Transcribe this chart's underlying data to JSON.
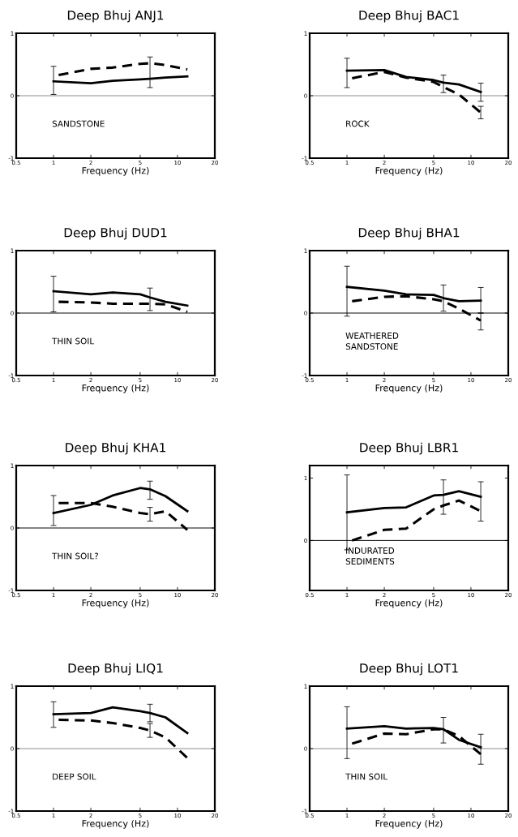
{
  "chart_data": [
    {
      "type": "line",
      "title": "Deep Bhuj ANJ1",
      "xlabel": "Frequency (Hz)",
      "log": "x",
      "xlim": [
        0.5,
        20
      ],
      "xticks": [
        0.5,
        1,
        2,
        5,
        10,
        20
      ],
      "ylim": [
        -1,
        1
      ],
      "yticks": [
        -1,
        0,
        1
      ],
      "grid": false,
      "legend": false,
      "annotations": [
        "SANDSTONE"
      ],
      "ref_lines": [
        {
          "axis": "y",
          "value": 0,
          "color": "#888888"
        }
      ],
      "series": [
        {
          "color": "#000000",
          "line_style": "solid",
          "x": [
            1,
            2,
            3,
            5,
            6,
            8,
            12
          ],
          "values": [
            0.23,
            0.2,
            0.24,
            0.26,
            0.27,
            0.29,
            0.31
          ],
          "errors": [
            [
              0.02,
              0.47
            ],
            null,
            null,
            null,
            [
              0.13,
              0.62
            ],
            null,
            null
          ]
        },
        {
          "color": "#000000",
          "line_style": "dashed",
          "x": [
            1.1,
            2,
            3,
            5,
            6,
            8,
            12
          ],
          "values": [
            0.33,
            0.43,
            0.45,
            0.51,
            0.52,
            0.49,
            0.42
          ]
        }
      ]
    },
    {
      "type": "line",
      "title": "Deep Bhuj BAC1",
      "xlabel": "Frequency (Hz)",
      "log": "x",
      "xlim": [
        0.5,
        20
      ],
      "xticks": [
        0.5,
        1,
        2,
        5,
        10,
        20
      ],
      "ylim": [
        -1,
        1
      ],
      "yticks": [
        -1,
        0,
        1
      ],
      "grid": false,
      "legend": false,
      "annotations": [
        "ROCK"
      ],
      "ref_lines": [
        {
          "axis": "y",
          "value": 0,
          "color": "#888888"
        }
      ],
      "series": [
        {
          "color": "#000000",
          "line_style": "solid",
          "x": [
            1,
            2,
            3,
            5,
            6,
            8,
            12
          ],
          "values": [
            0.4,
            0.41,
            0.3,
            0.25,
            0.21,
            0.18,
            0.06
          ],
          "errors": [
            [
              0.13,
              0.6
            ],
            null,
            null,
            null,
            [
              0.05,
              0.33
            ],
            null,
            [
              -0.09,
              0.2
            ]
          ]
        },
        {
          "color": "#000000",
          "line_style": "dashed",
          "x": [
            1.1,
            2,
            3,
            5,
            6,
            8,
            12
          ],
          "values": [
            0.28,
            0.38,
            0.29,
            0.22,
            0.14,
            0.02,
            -0.27
          ],
          "errors": [
            null,
            null,
            null,
            null,
            null,
            null,
            [
              -0.37,
              -0.17
            ]
          ]
        }
      ]
    },
    {
      "type": "line",
      "title": "Deep Bhuj DUD1",
      "xlabel": "Frequency (Hz)",
      "log": "x",
      "xlim": [
        0.5,
        20
      ],
      "xticks": [
        0.5,
        1,
        2,
        5,
        10,
        20
      ],
      "ylim": [
        -1,
        1
      ],
      "yticks": [
        -1,
        0,
        1
      ],
      "grid": false,
      "legend": false,
      "annotations": [
        "THIN SOIL"
      ],
      "ref_lines": [
        {
          "axis": "y",
          "value": 0,
          "color": "#000000"
        }
      ],
      "series": [
        {
          "color": "#000000",
          "line_style": "solid",
          "x": [
            1,
            2,
            3,
            5,
            6,
            8,
            12
          ],
          "values": [
            0.35,
            0.3,
            0.33,
            0.3,
            0.25,
            0.18,
            0.12
          ],
          "errors": [
            [
              0.02,
              0.59
            ],
            null,
            null,
            null,
            [
              0.04,
              0.4
            ],
            null,
            null
          ]
        },
        {
          "color": "#000000",
          "line_style": "dashed",
          "x": [
            1.1,
            2,
            3,
            5,
            6,
            8,
            12
          ],
          "values": [
            0.18,
            0.17,
            0.15,
            0.15,
            0.15,
            0.14,
            0.02
          ]
        }
      ]
    },
    {
      "type": "line",
      "title": "Deep Bhuj BHA1",
      "xlabel": "Frequency (Hz)",
      "log": "x",
      "xlim": [
        0.5,
        20
      ],
      "xticks": [
        0.5,
        1,
        2,
        5,
        10,
        20
      ],
      "ylim": [
        -1,
        1
      ],
      "yticks": [
        -1,
        0,
        1
      ],
      "grid": false,
      "legend": false,
      "annotations": [
        "WEATHERED\nSANDSTONE"
      ],
      "ref_lines": [
        {
          "axis": "y",
          "value": 0,
          "color": "#000000"
        }
      ],
      "series": [
        {
          "color": "#000000",
          "line_style": "solid",
          "x": [
            1,
            2,
            3,
            5,
            6,
            8,
            12
          ],
          "values": [
            0.42,
            0.36,
            0.3,
            0.29,
            0.24,
            0.19,
            0.2
          ],
          "errors": [
            [
              -0.05,
              0.75
            ],
            null,
            null,
            null,
            [
              0.03,
              0.45
            ],
            null,
            [
              0,
              0.41
            ]
          ]
        },
        {
          "color": "#000000",
          "line_style": "dashed",
          "x": [
            1.1,
            2,
            3,
            5,
            6,
            8,
            12
          ],
          "values": [
            0.19,
            0.26,
            0.27,
            0.22,
            0.19,
            0.07,
            -0.12
          ],
          "errors": [
            null,
            null,
            null,
            null,
            null,
            null,
            [
              -0.27,
              0
            ]
          ]
        }
      ]
    },
    {
      "type": "line",
      "title": "Deep Bhuj KHA1",
      "xlabel": "Frequency (Hz)",
      "log": "x",
      "xlim": [
        0.5,
        20
      ],
      "xticks": [
        0.5,
        1,
        2,
        5,
        10,
        20
      ],
      "ylim": [
        -1,
        1
      ],
      "yticks": [
        -1,
        0,
        1
      ],
      "grid": false,
      "legend": false,
      "annotations": [
        "THIN SOIL?"
      ],
      "ref_lines": [
        {
          "axis": "y",
          "value": 0,
          "color": "#000000"
        }
      ],
      "series": [
        {
          "color": "#000000",
          "line_style": "solid",
          "x": [
            1,
            2,
            3,
            5,
            6,
            8,
            12
          ],
          "values": [
            0.24,
            0.37,
            0.52,
            0.64,
            0.62,
            0.51,
            0.27
          ],
          "errors": [
            [
              0.04,
              0.52
            ],
            null,
            null,
            null,
            [
              0.46,
              0.75
            ],
            null,
            null
          ]
        },
        {
          "color": "#000000",
          "line_style": "dashed",
          "x": [
            1.1,
            2,
            3,
            5,
            6,
            8,
            12
          ],
          "values": [
            0.4,
            0.4,
            0.34,
            0.24,
            0.22,
            0.27,
            -0.03
          ],
          "errors": [
            null,
            null,
            null,
            null,
            [
              0.11,
              0.33
            ],
            null,
            null
          ]
        }
      ]
    },
    {
      "type": "line",
      "title": "Deep Bhuj LBR1",
      "xlabel": "Frequency (Hz)",
      "log": "x",
      "xlim": [
        0.5,
        20
      ],
      "xticks": [
        0.5,
        1,
        2,
        5,
        10,
        20
      ],
      "ylim": [
        -0.8,
        1.2
      ],
      "yticks": [
        0,
        1
      ],
      "grid": false,
      "legend": false,
      "annotations": [
        "INDURATED\nSEDIMENTS"
      ],
      "ref_lines": [
        {
          "axis": "y",
          "value": 0,
          "color": "#000000"
        }
      ],
      "series": [
        {
          "color": "#000000",
          "line_style": "solid",
          "x": [
            1,
            2,
            3,
            5,
            6,
            8,
            12
          ],
          "values": [
            0.45,
            0.52,
            0.53,
            0.72,
            0.73,
            0.79,
            0.7
          ],
          "errors": [
            [
              -0.15,
              1.05
            ],
            null,
            null,
            null,
            [
              0.42,
              0.97
            ],
            null,
            [
              0.31,
              0.94
            ]
          ]
        },
        {
          "color": "#000000",
          "line_style": "dashed",
          "x": [
            1.1,
            2,
            3,
            5,
            6,
            8,
            12
          ],
          "values": [
            0,
            0.17,
            0.19,
            0.5,
            0.56,
            0.64,
            0.47
          ]
        }
      ]
    },
    {
      "type": "line",
      "title": "Deep Bhuj LIQ1",
      "xlabel": "Frequency (Hz)",
      "log": "x",
      "xlim": [
        0.5,
        20
      ],
      "xticks": [
        0.5,
        1,
        2,
        5,
        10,
        20
      ],
      "ylim": [
        -1,
        1
      ],
      "yticks": [
        -1,
        0,
        1
      ],
      "grid": false,
      "legend": false,
      "annotations": [
        "DEEP SOIL"
      ],
      "ref_lines": [
        {
          "axis": "y",
          "value": 0,
          "color": "#888888"
        }
      ],
      "series": [
        {
          "color": "#000000",
          "line_style": "solid",
          "x": [
            1,
            2,
            3,
            5,
            6,
            8,
            12
          ],
          "values": [
            0.55,
            0.57,
            0.66,
            0.6,
            0.57,
            0.5,
            0.25
          ],
          "errors": [
            [
              0.34,
              0.75
            ],
            null,
            null,
            null,
            [
              0.43,
              0.71
            ],
            null,
            null
          ]
        },
        {
          "color": "#000000",
          "line_style": "dashed",
          "x": [
            1.1,
            2,
            3,
            5,
            6,
            8,
            12
          ],
          "values": [
            0.46,
            0.45,
            0.41,
            0.33,
            0.29,
            0.18,
            -0.15
          ],
          "errors": [
            null,
            null,
            null,
            null,
            [
              0.18,
              0.4
            ],
            null,
            null
          ]
        }
      ]
    },
    {
      "type": "line",
      "title": "Deep Bhuj LOT1",
      "xlabel": "Frequency (Hz)",
      "log": "x",
      "xlim": [
        0.5,
        20
      ],
      "xticks": [
        0.5,
        1,
        2,
        5,
        10,
        20
      ],
      "ylim": [
        -1,
        1
      ],
      "yticks": [
        -1,
        0,
        1
      ],
      "grid": false,
      "legend": false,
      "annotations": [
        "THIN SOIL"
      ],
      "ref_lines": [
        {
          "axis": "y",
          "value": 0,
          "color": "#888888"
        }
      ],
      "series": [
        {
          "color": "#000000",
          "line_style": "solid",
          "x": [
            1,
            2,
            3,
            5,
            6,
            8,
            12
          ],
          "values": [
            0.32,
            0.36,
            0.32,
            0.33,
            0.31,
            0.14,
            0.02
          ],
          "errors": [
            [
              -0.16,
              0.67
            ],
            null,
            null,
            null,
            [
              0.09,
              0.5
            ],
            null,
            [
              -0.25,
              0.23
            ]
          ]
        },
        {
          "color": "#000000",
          "line_style": "dashed",
          "x": [
            1.1,
            2,
            3,
            5,
            6,
            8,
            12
          ],
          "values": [
            0.08,
            0.24,
            0.23,
            0.31,
            0.31,
            0.2,
            -0.09
          ]
        }
      ]
    }
  ]
}
